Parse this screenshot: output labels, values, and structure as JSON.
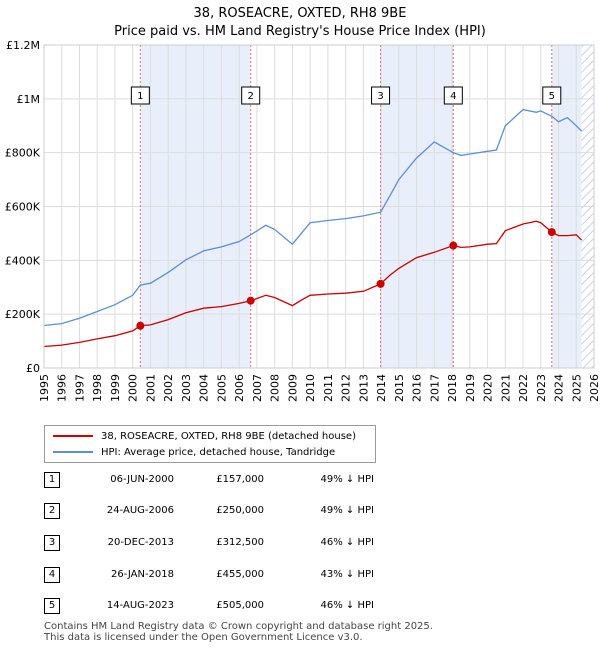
{
  "title": "38, ROSEACRE, OXTED, RH8 9BE",
  "subtitle": "Price paid vs. HM Land Registry's House Price Index (HPI)",
  "legend": {
    "property": "38, ROSEACRE, OXTED, RH8 9BE (detached house)",
    "hpi": "HPI: Average price, detached house, Tandridge"
  },
  "colors": {
    "property": "#cc0000",
    "hpi": "#5b8fd6",
    "shade": "#e8eefa",
    "hatch": "#c8d2e8",
    "grid": "#dddddd"
  },
  "sales": [
    {
      "num": "1",
      "date": "06-JUN-2000",
      "price": "£157,000",
      "hpi": "49% ↓ HPI"
    },
    {
      "num": "2",
      "date": "24-AUG-2006",
      "price": "£250,000",
      "hpi": "49% ↓ HPI"
    },
    {
      "num": "3",
      "date": "20-DEC-2013",
      "price": "£312,500",
      "hpi": "46% ↓ HPI"
    },
    {
      "num": "4",
      "date": "26-JAN-2018",
      "price": "£455,000",
      "hpi": "43% ↓ HPI"
    },
    {
      "num": "5",
      "date": "14-AUG-2023",
      "price": "£505,000",
      "hpi": "46% ↓ HPI"
    }
  ],
  "footer": {
    "line1": "Contains HM Land Registry data © Crown copyright and database right 2025.",
    "line2": "This data is licensed under the Open Government Licence v3.0."
  },
  "chart_data": {
    "type": "line",
    "xlim": [
      1995,
      2026
    ],
    "ylim": [
      0,
      1200000
    ],
    "y_ticks": [
      0,
      200000,
      400000,
      600000,
      800000,
      1000000,
      1200000
    ],
    "y_tick_labels": [
      "£0",
      "£200K",
      "£400K",
      "£600K",
      "£800K",
      "£1M",
      "£1.2M"
    ],
    "x_ticks": [
      1995,
      1996,
      1997,
      1998,
      1999,
      2000,
      2001,
      2002,
      2003,
      2004,
      2005,
      2006,
      2007,
      2008,
      2009,
      2010,
      2011,
      2012,
      2013,
      2014,
      2015,
      2016,
      2017,
      2018,
      2019,
      2020,
      2021,
      2022,
      2023,
      2024,
      2025,
      2026
    ],
    "x_tick_labels": [
      "1995",
      "1996",
      "1997",
      "1998",
      "1999",
      "2000",
      "2001",
      "2002",
      "2003",
      "2004",
      "2005",
      "2006",
      "2007",
      "2008",
      "2009",
      "2010",
      "2011",
      "2012",
      "2013",
      "2014",
      "2015",
      "2016",
      "2017",
      "2018",
      "2019",
      "2020",
      "2021",
      "2022",
      "2023",
      "2024",
      "2025",
      "2026"
    ],
    "grid": true,
    "shaded_ranges": [
      [
        2000.43,
        2006.65
      ],
      [
        2013.97,
        2018.07
      ],
      [
        2023.62,
        2025.3
      ]
    ],
    "hatched_range": [
      2025.3,
      2026
    ],
    "series": [
      {
        "name": "38, ROSEACRE, OXTED, RH8 9BE (detached house)",
        "x": [
          1995.0,
          1996.0,
          1997.0,
          1998.0,
          1999.0,
          2000.0,
          2000.43,
          2001.0,
          2002.0,
          2003.0,
          2004.0,
          2005.0,
          2006.0,
          2006.65,
          2007.5,
          2008.0,
          2009.0,
          2009.5,
          2010.0,
          2011.0,
          2012.0,
          2013.0,
          2013.97,
          2014.5,
          2015.0,
          2016.0,
          2017.0,
          2018.07,
          2018.5,
          2019.0,
          2020.0,
          2020.5,
          2021.0,
          2022.0,
          2022.75,
          2023.0,
          2023.62,
          2024.0,
          2024.5,
          2025.0,
          2025.3
        ],
        "y": [
          80000,
          85000,
          95000,
          108000,
          120000,
          138000,
          157000,
          160000,
          180000,
          205000,
          222000,
          228000,
          240000,
          250000,
          270000,
          262000,
          232000,
          252000,
          270000,
          275000,
          278000,
          285000,
          312500,
          345000,
          370000,
          410000,
          430000,
          455000,
          448000,
          450000,
          460000,
          462000,
          510000,
          535000,
          545000,
          540000,
          505000,
          492000,
          492000,
          495000,
          475000
        ]
      },
      {
        "name": "HPI: Average price, detached house, Tandridge",
        "x": [
          1995.0,
          1996.0,
          1997.0,
          1998.0,
          1999.0,
          2000.0,
          2000.43,
          2001.0,
          2002.0,
          2003.0,
          2004.0,
          2005.0,
          2006.0,
          2006.65,
          2007.5,
          2008.0,
          2009.0,
          2009.5,
          2010.0,
          2011.0,
          2012.0,
          2013.0,
          2013.97,
          2014.5,
          2015.0,
          2016.0,
          2017.0,
          2018.07,
          2018.5,
          2019.0,
          2020.0,
          2020.5,
          2021.0,
          2022.0,
          2022.75,
          2023.0,
          2023.62,
          2024.0,
          2024.5,
          2025.0,
          2025.3
        ],
        "y": [
          158000,
          165000,
          185000,
          210000,
          235000,
          270000,
          308000,
          315000,
          355000,
          402000,
          435000,
          450000,
          470000,
          495000,
          530000,
          515000,
          460000,
          500000,
          540000,
          548000,
          555000,
          565000,
          579000,
          640000,
          700000,
          780000,
          840000,
          800000,
          790000,
          795000,
          805000,
          810000,
          900000,
          960000,
          950000,
          955000,
          935000,
          915000,
          930000,
          900000,
          880000
        ]
      }
    ],
    "sale_markers": [
      {
        "label": "1",
        "x": 2000.43,
        "y": 157000
      },
      {
        "label": "2",
        "x": 2006.65,
        "y": 250000
      },
      {
        "label": "3",
        "x": 2013.97,
        "y": 312500
      },
      {
        "label": "4",
        "x": 2018.07,
        "y": 455000
      },
      {
        "label": "5",
        "x": 2023.62,
        "y": 505000
      }
    ]
  }
}
